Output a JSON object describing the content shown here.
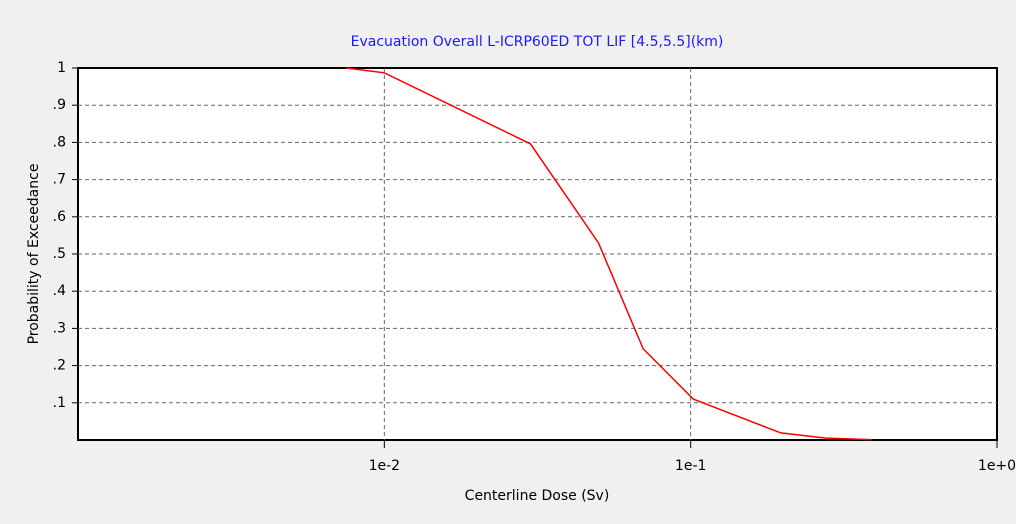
{
  "chart_data": {
    "type": "line",
    "title": "Evacuation Overall L-ICRP60ED TOT LIF [4.5,5.5](km)",
    "x_label": "Centerline Dose (Sv)",
    "y_label": "Probability of Exceedance",
    "x": [
      0.0075,
      0.01,
      0.03,
      0.05,
      0.07,
      0.102,
      0.197,
      0.276,
      0.39
    ],
    "series": [
      {
        "name": "Probability of Exceedance",
        "color": "#ff0000",
        "values": [
          1.0,
          0.987,
          0.796,
          0.53,
          0.245,
          0.11,
          0.019,
          0.005,
          0.001
        ]
      }
    ],
    "xlim": [
      0.001,
      1
    ],
    "x_log": true,
    "xticks": [
      {
        "value": 0.01,
        "label": "1e-2"
      },
      {
        "value": 0.1,
        "label": "1e-1"
      },
      {
        "value": 1,
        "label": "1e+0"
      }
    ],
    "ylim": [
      0,
      1
    ],
    "yticks": [
      {
        "value": 0.1,
        "label": ".1"
      },
      {
        "value": 0.2,
        "label": ".2"
      },
      {
        "value": 0.3,
        "label": ".3"
      },
      {
        "value": 0.4,
        "label": ".4"
      },
      {
        "value": 0.5,
        "label": ".5"
      },
      {
        "value": 0.6,
        "label": ".6"
      },
      {
        "value": 0.7,
        "label": ".7"
      },
      {
        "value": 0.8,
        "label": ".8"
      },
      {
        "value": 0.9,
        "label": ".9"
      },
      1
    ],
    "grid": true
  }
}
